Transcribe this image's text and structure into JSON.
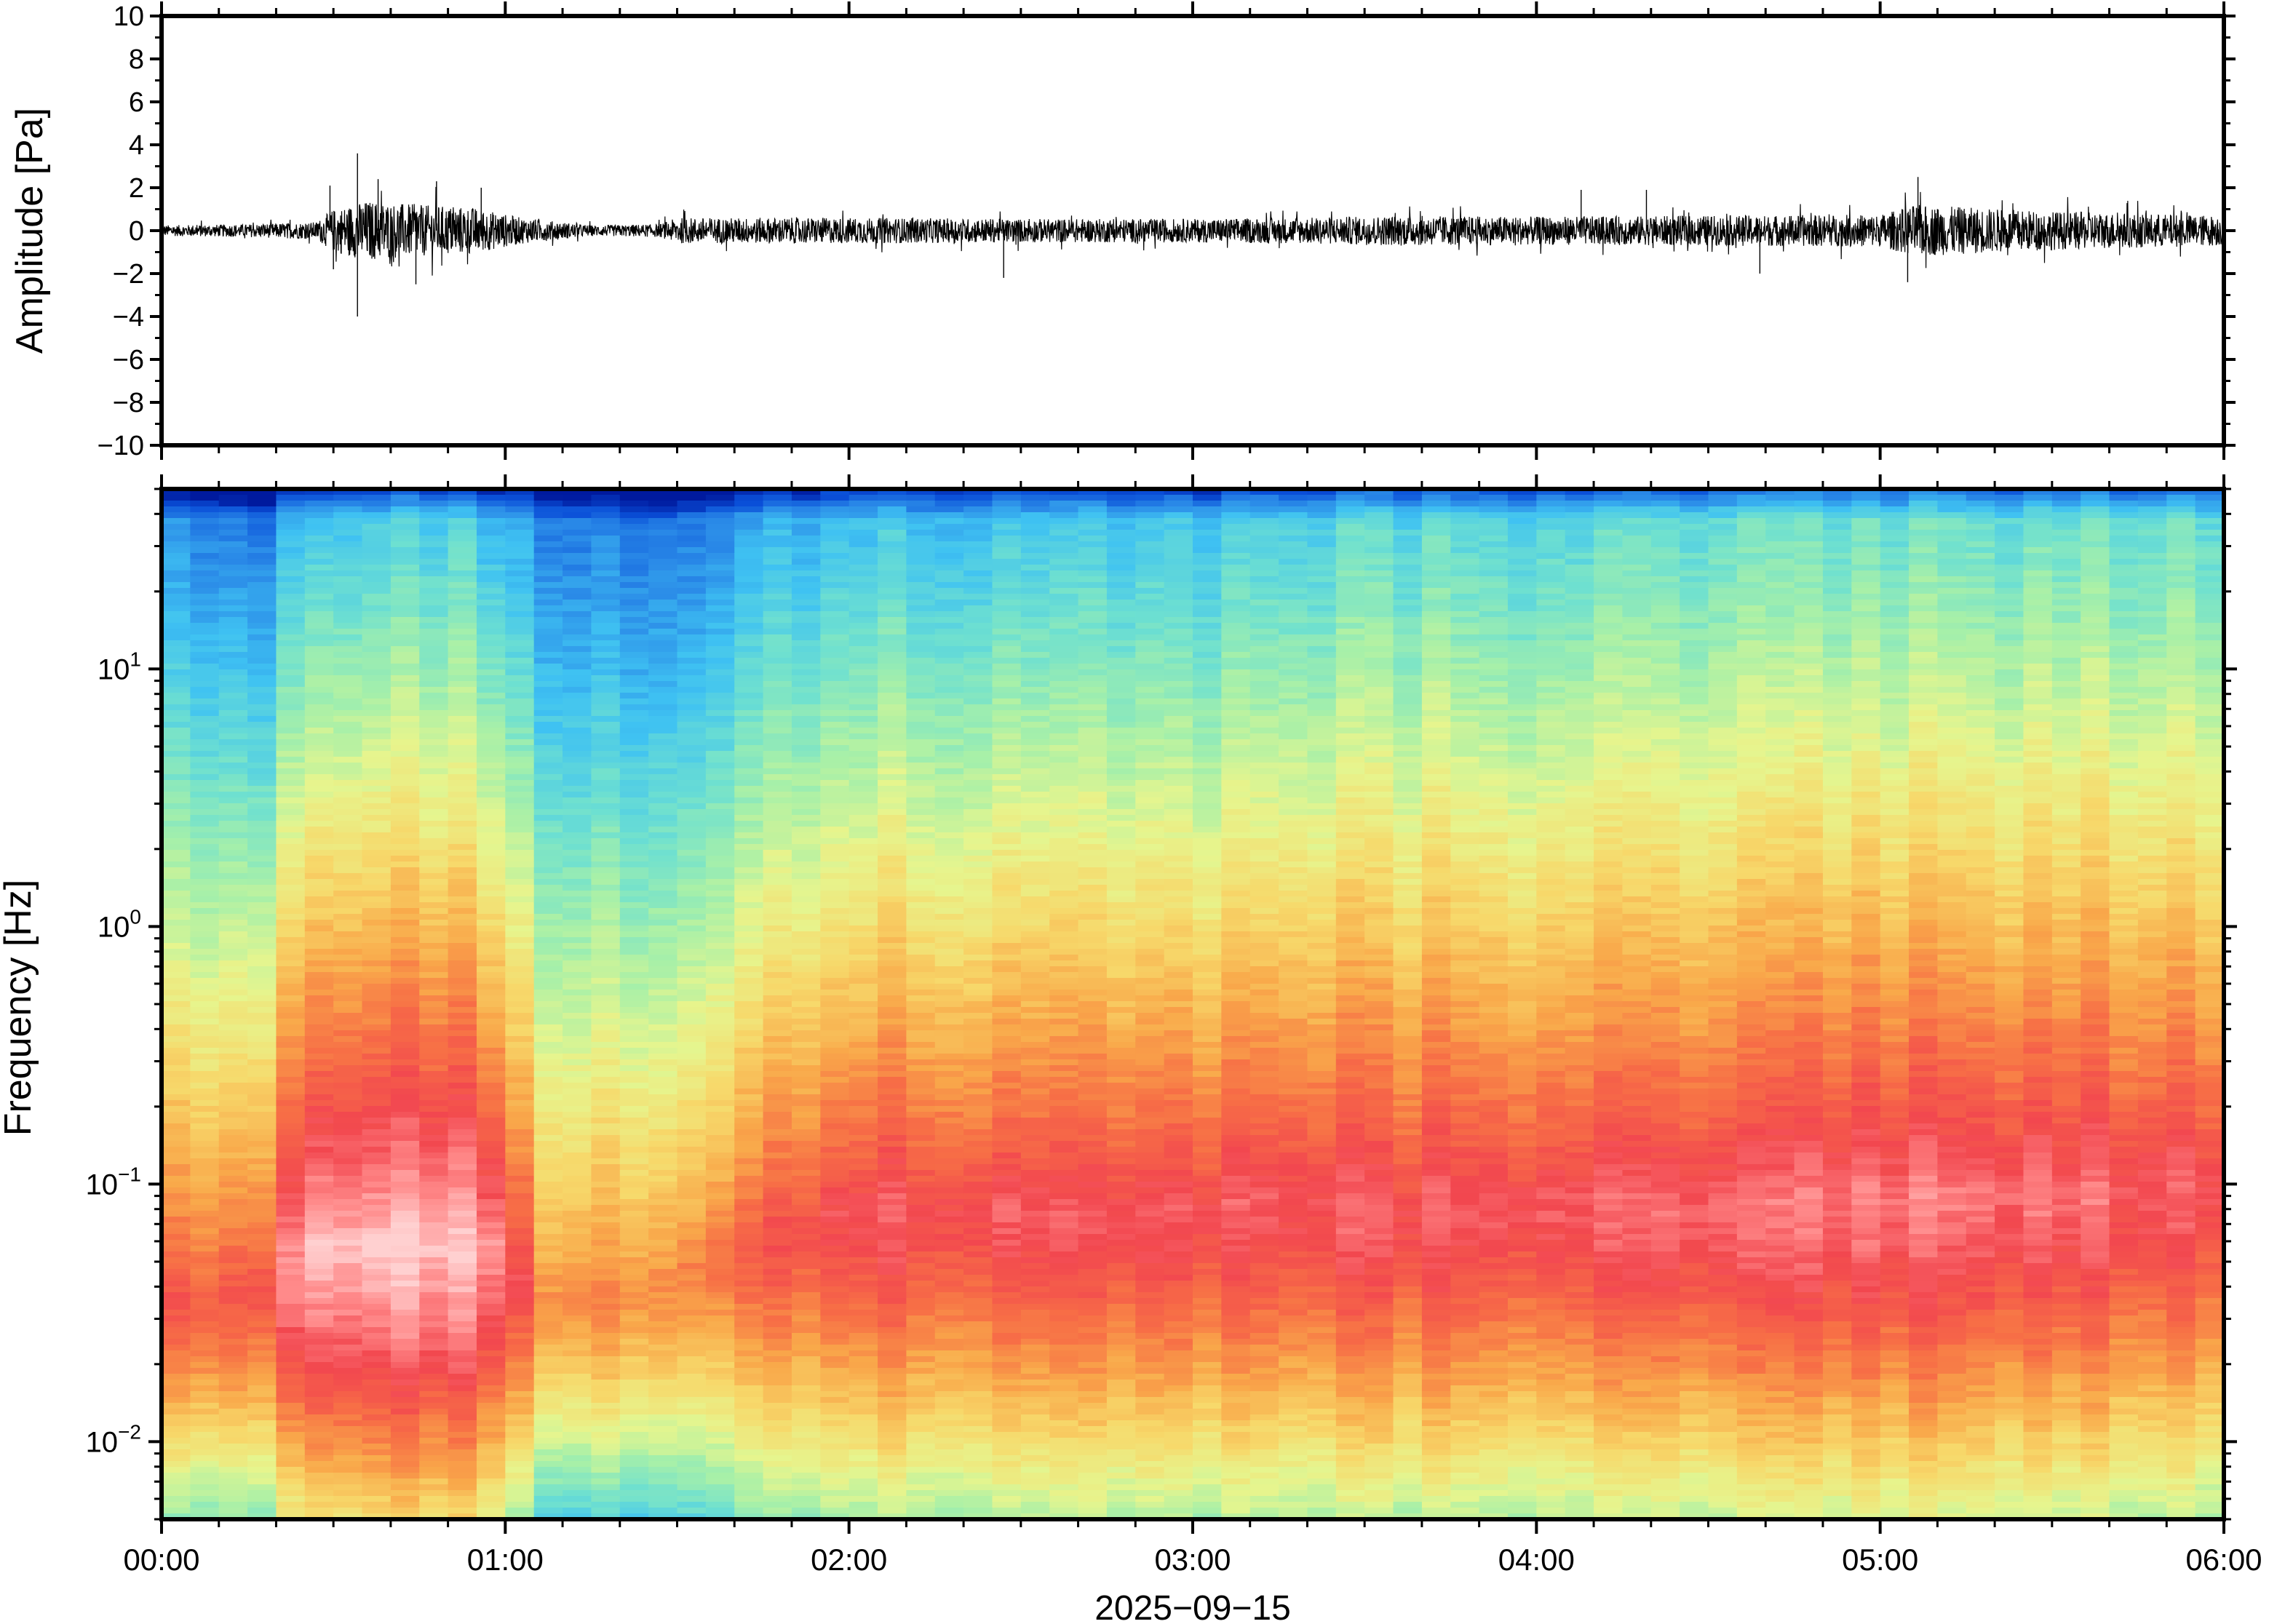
{
  "chart_data": [
    {
      "type": "line",
      "ylabel": "Amplitude [Pa]",
      "ylim": [
        -10,
        10
      ],
      "yticks": [
        "−10",
        "−8",
        "−6",
        "−4",
        "−2",
        "0",
        "2",
        "4",
        "6",
        "8",
        "10"
      ],
      "ytick_values": [
        -10,
        -8,
        -6,
        -4,
        -2,
        0,
        2,
        4,
        6,
        8,
        10
      ],
      "xlim_hours": [
        0,
        6
      ],
      "trace_color": "#000000",
      "envelope_hours": [
        0,
        0.25,
        0.45,
        0.5,
        0.6,
        0.75,
        0.9,
        1.05,
        1.25,
        1.45,
        1.5,
        2,
        2.5,
        3,
        3.3,
        3.6,
        4,
        4.5,
        5,
        5.1,
        5.5,
        6
      ],
      "envelope_amp": [
        0.25,
        0.3,
        0.4,
        1.0,
        1.4,
        1.2,
        1.1,
        0.6,
        0.25,
        0.3,
        0.6,
        0.6,
        0.55,
        0.55,
        0.6,
        0.7,
        0.65,
        0.7,
        0.75,
        1.2,
        0.9,
        0.7
      ],
      "spikes": [
        [
          0.57,
          3.6
        ],
        [
          0.57,
          -4.0
        ],
        [
          0.49,
          2.1
        ],
        [
          0.5,
          -1.8
        ],
        [
          0.63,
          2.4
        ],
        [
          0.74,
          -2.5
        ],
        [
          0.8,
          2.3
        ],
        [
          0.93,
          2.0
        ],
        [
          2.45,
          -2.2
        ],
        [
          4.13,
          1.9
        ],
        [
          4.32,
          1.9
        ],
        [
          4.65,
          -2.0
        ],
        [
          5.11,
          2.5
        ],
        [
          5.08,
          -2.4
        ]
      ]
    },
    {
      "type": "heatmap",
      "ylabel": "Frequency [Hz]",
      "xlabel": "2025−09−15",
      "yscale": "log",
      "ylim_hz": [
        0.005,
        50
      ],
      "yticks": [
        {
          "base": "10",
          "exp": "−2",
          "value": 0.01
        },
        {
          "base": "10",
          "exp": "−1",
          "value": 0.1
        },
        {
          "base": "10",
          "exp": "0",
          "value": 1
        },
        {
          "base": "10",
          "exp": "1",
          "value": 10
        }
      ],
      "xticks": [
        "00:00",
        "01:00",
        "02:00",
        "03:00",
        "04:00",
        "05:00",
        "06:00"
      ],
      "xtick_hours": [
        0,
        1,
        2,
        3,
        4,
        5,
        6
      ],
      "xlim_hours": [
        0,
        6
      ],
      "colormap": [
        "#001a9e",
        "#0a4fd8",
        "#2b8ce8",
        "#3fc2f2",
        "#6ee0d0",
        "#a8f0a8",
        "#e6f58e",
        "#f7d86a",
        "#f9a84a",
        "#f76f46",
        "#f2474f",
        "#ff8a8a",
        "#ffd0d0"
      ],
      "time_bands_hours": [
        0,
        0.12,
        0.29,
        0.45,
        0.67,
        0.95,
        1.12,
        1.45,
        2,
        3,
        3.3,
        3.6,
        4,
        4.5,
        4.95,
        5.35,
        6
      ],
      "peak_freq_hz": [
        0.035,
        0.035,
        0.04,
        0.06,
        0.06,
        0.06,
        0.035,
        0.04,
        0.08,
        0.08,
        0.09,
        0.08,
        0.085,
        0.08,
        0.09,
        0.09,
        0.1
      ],
      "peak_level": [
        0.78,
        0.8,
        0.8,
        1.0,
        1.0,
        0.97,
        0.7,
        0.72,
        0.85,
        0.86,
        0.86,
        0.86,
        0.87,
        0.87,
        0.9,
        0.9,
        0.86
      ],
      "high_freq_level": [
        0.15,
        0.16,
        0.12,
        0.28,
        0.28,
        0.26,
        0.14,
        0.14,
        0.25,
        0.26,
        0.28,
        0.3,
        0.3,
        0.31,
        0.32,
        0.33,
        0.33
      ]
    }
  ]
}
